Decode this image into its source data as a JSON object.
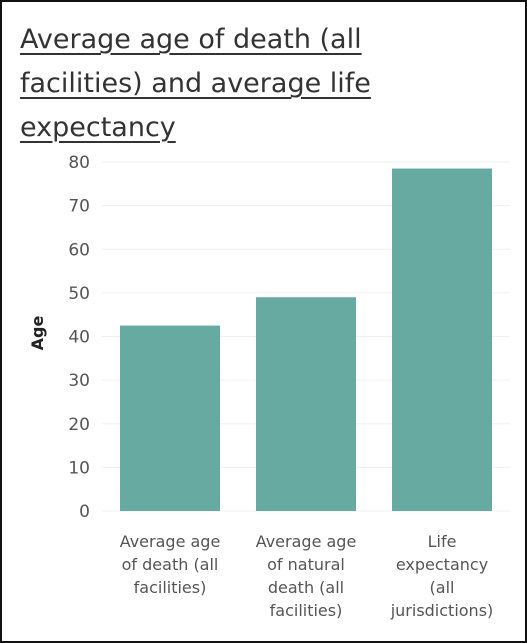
{
  "chart_data": {
    "type": "bar",
    "title": "Average age of death (all facilities) and average life expectancy",
    "xlabel": "",
    "ylabel": "Age",
    "ylim": [
      0,
      80
    ],
    "yticks": [
      0,
      10,
      20,
      30,
      40,
      50,
      60,
      70,
      80
    ],
    "categories": [
      "Average age of death (all facilities)",
      "Average age of natural death (all facilities)",
      "Life expectancy (all jurisdictions)"
    ],
    "category_lines": [
      [
        "Average age",
        "of death (all",
        "facilities)"
      ],
      [
        "Average age",
        "of natural",
        "death (all",
        "facilities)"
      ],
      [
        "Life",
        "expectancy",
        "(all",
        "jurisdictions)"
      ]
    ],
    "values": [
      42.5,
      49,
      78.5
    ],
    "bar_color": "#67aaa2",
    "grid": true
  }
}
